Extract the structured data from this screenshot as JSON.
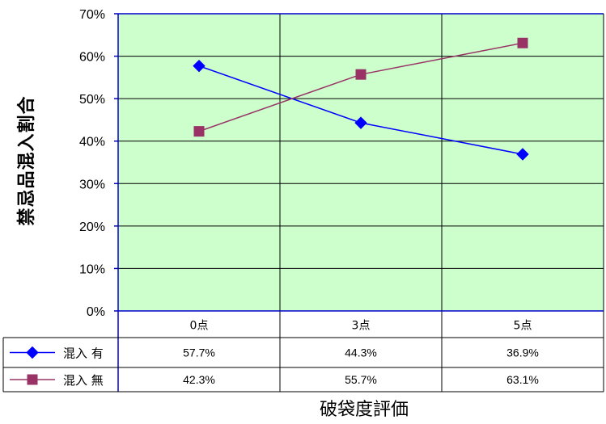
{
  "chart_data": {
    "type": "line",
    "ylabel": "禁忌品混入割合",
    "xlabel": "破袋度評価",
    "categories": [
      "0点",
      "3点",
      "5点"
    ],
    "ylim": [
      0,
      70
    ],
    "yticks": [
      0,
      10,
      20,
      30,
      40,
      50,
      60,
      70
    ],
    "ytick_labels": [
      "0%",
      "10%",
      "20%",
      "30%",
      "40%",
      "50%",
      "60%",
      "70%"
    ],
    "grid": true,
    "legend": "data-table",
    "plot_background": "#ccffcc",
    "series": [
      {
        "name": "混入 有",
        "values": [
          57.7,
          44.3,
          36.9
        ],
        "labels": [
          "57.7%",
          "44.3%",
          "36.9%"
        ],
        "color": "#0000ff",
        "marker": "diamond"
      },
      {
        "name": "混入 無",
        "values": [
          42.3,
          55.7,
          63.1
        ],
        "labels": [
          "42.3%",
          "55.7%",
          "63.1%"
        ],
        "color": "#993366",
        "marker": "square"
      }
    ]
  }
}
